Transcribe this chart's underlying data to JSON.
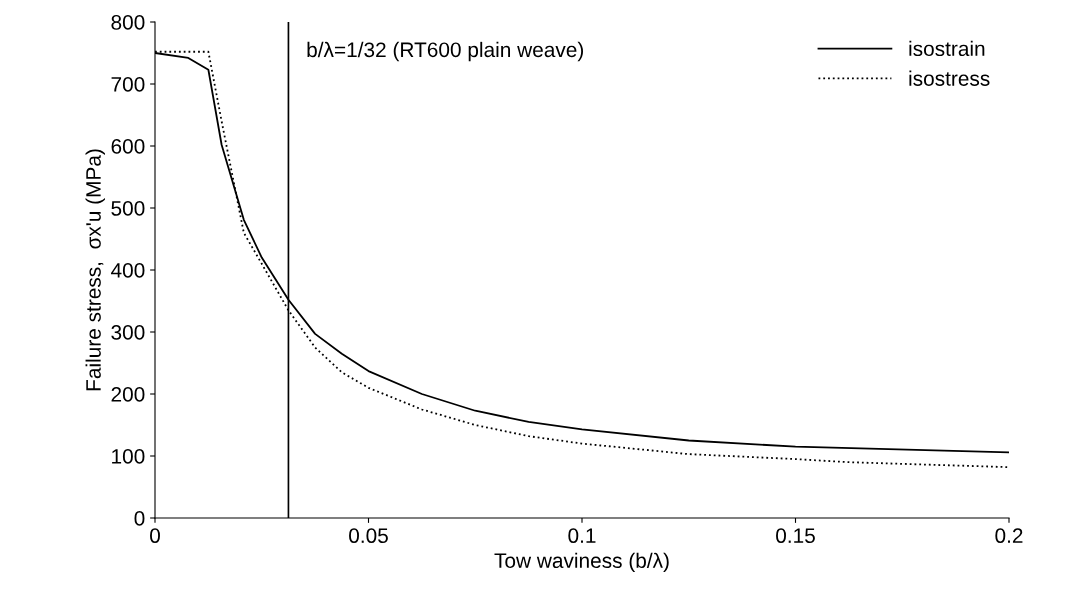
{
  "chart_data": {
    "type": "line",
    "xlabel": "Tow waviness (b/λ)",
    "ylabel": "Failure stress,  σx'u (MPa)",
    "xlim": [
      0,
      0.2
    ],
    "xticks": [
      0,
      0.05,
      0.1,
      0.15,
      0.2
    ],
    "ylim": [
      0,
      800
    ],
    "yticks": [
      0,
      100,
      200,
      300,
      400,
      500,
      600,
      700,
      800
    ],
    "grid": false,
    "legend": "top right",
    "marker": "none",
    "series": [
      {
        "name": "isostrain",
        "color": "#000000",
        "line_style": "solid",
        "x": [
          0,
          0.0078,
          0.0125,
          0.0156,
          0.0208,
          0.025,
          0.03125,
          0.0375,
          0.04375,
          0.05,
          0.0625,
          0.075,
          0.0875,
          0.1,
          0.125,
          0.15,
          0.2
        ],
        "values": [
          750,
          742,
          723,
          602,
          481,
          420,
          352,
          297,
          265,
          237,
          200,
          173,
          155,
          143,
          125,
          115,
          106
        ]
      },
      {
        "name": "isostress",
        "color": "#000000",
        "line_style": "dotted",
        "x": [
          0,
          0.0125,
          0.0156,
          0.0208,
          0.025,
          0.03125,
          0.0375,
          0.04375,
          0.05,
          0.0625,
          0.075,
          0.0875,
          0.1,
          0.125,
          0.15,
          0.1625,
          0.2
        ],
        "values": [
          752,
          752,
          640,
          460,
          410,
          335,
          275,
          235,
          210,
          175,
          150,
          132,
          120,
          103,
          95,
          90,
          82
        ]
      }
    ],
    "ref_lines": [
      {
        "axis": "x",
        "value": 0.03125,
        "color": "#000000",
        "line_style": "solid"
      }
    ],
    "annotations": [
      "b/λ=1/32 (RT600 plain weave)"
    ]
  }
}
